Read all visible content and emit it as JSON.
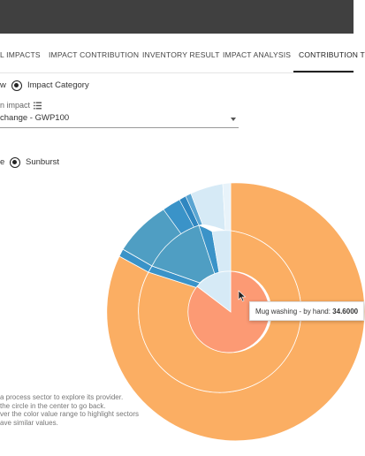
{
  "tabs": [
    {
      "label": "L IMPACTS"
    },
    {
      "label": "IMPACT CONTRIBUTION"
    },
    {
      "label": "INVENTORY RESULT"
    },
    {
      "label": "IMPACT ANALYSIS"
    },
    {
      "label": "CONTRIBUTION T"
    }
  ],
  "view": {
    "partial_label": "w",
    "selected_label": "Impact Category"
  },
  "impact": {
    "label": "n impact",
    "selected_value": "change - GWP100"
  },
  "chart_type": {
    "partial_label": "e",
    "selected_label": "Sunburst"
  },
  "help_lines": [
    "a process sector to explore its provider.",
    "the circle in the center to go back.",
    "ver the color value range to highlight sectors",
    "ave similar values."
  ],
  "tooltip": {
    "label": "Mug washing - by hand:",
    "value": "34.6000"
  },
  "colors": {
    "orange": "#FBAE63",
    "salmon": "#FC9A74",
    "blue": "#3A93C8",
    "teal": "#4F9EC3",
    "light_blue": "#D6EAF6"
  },
  "icons": {
    "list": "list-icon",
    "caret": "caret-down-icon",
    "cursor": "cursor-icon"
  }
}
